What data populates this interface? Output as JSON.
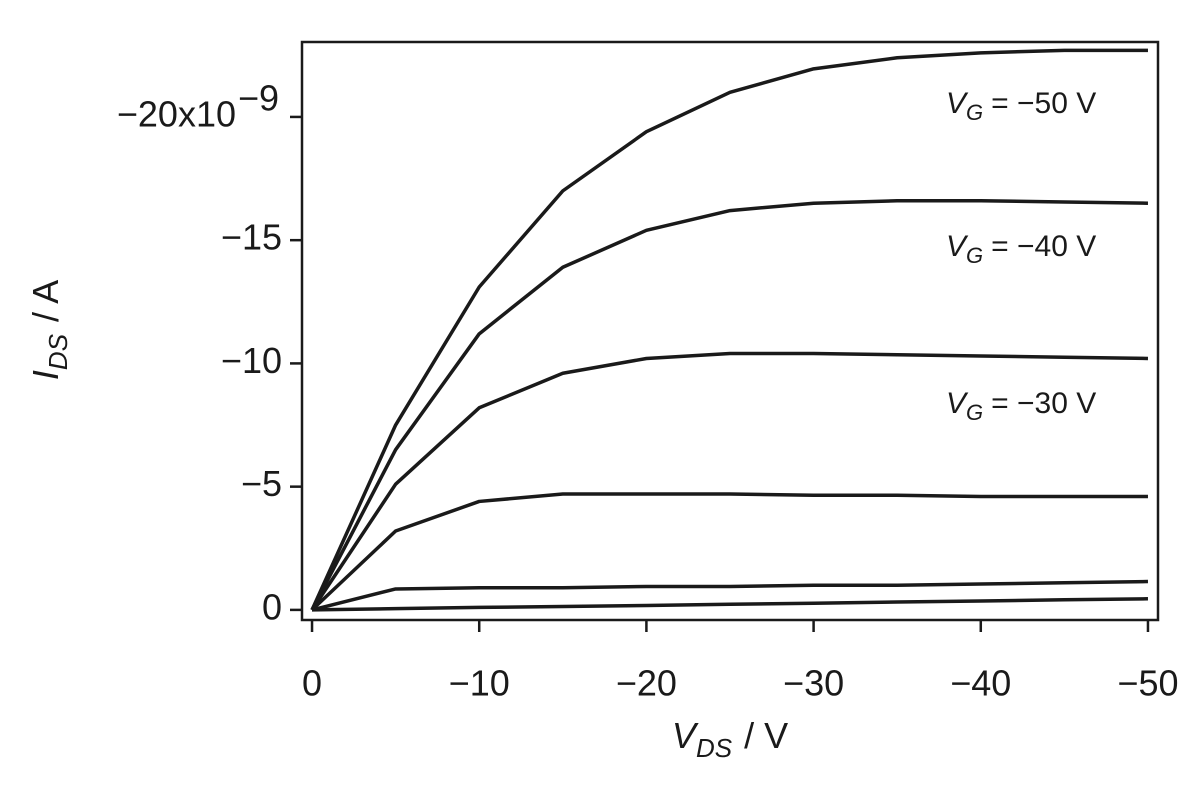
{
  "chart_data": {
    "type": "line",
    "xlabel": {
      "symbol": "V",
      "subscript": "DS",
      "unit": "/ V"
    },
    "ylabel": {
      "symbol": "I",
      "subscript": "DS",
      "unit": "/ A"
    },
    "x": [
      0,
      -5,
      -10,
      -15,
      -20,
      -25,
      -30,
      -35,
      -40,
      -45,
      -50
    ],
    "xlim": [
      0.6,
      -50.6
    ],
    "ylim": [
      0.41,
      -23.04
    ],
    "xticks": [
      0,
      {
        "value": -10,
        "label": "−10"
      },
      {
        "value": -20,
        "label": "−20"
      },
      {
        "value": -30,
        "label": "−30"
      },
      {
        "value": -40,
        "label": "−40"
      },
      {
        "value": -50,
        "label": "−50"
      }
    ],
    "yticks": [
      0,
      {
        "value": -5,
        "label": "−5"
      },
      {
        "value": -10,
        "label": "−10"
      },
      {
        "value": -15,
        "label": "−15"
      },
      {
        "value": -20,
        "label": "−20x10"
      }
    ],
    "ytick_exponent": "−9",
    "series": [
      {
        "label": {
          "symbol": "V",
          "subscript": "G",
          "text": "= −50 V"
        },
        "color": "#1a1a1a",
        "values": [
          0,
          -7.5,
          -13.1,
          -17.0,
          -19.4,
          -21.0,
          -21.95,
          -22.4,
          -22.6,
          -22.7,
          -22.7
        ]
      },
      {
        "label": {
          "symbol": "V",
          "subscript": "G",
          "text": "= −40 V"
        },
        "color": "#1a1a1a",
        "values": [
          0,
          -6.5,
          -11.2,
          -13.9,
          -15.4,
          -16.2,
          -16.5,
          -16.6,
          -16.6,
          -16.55,
          -16.5
        ]
      },
      {
        "label": {
          "symbol": "V",
          "subscript": "G",
          "text": "= −30 V"
        },
        "color": "#1a1a1a",
        "values": [
          0,
          -5.1,
          -8.2,
          -9.6,
          -10.2,
          -10.4,
          -10.4,
          -10.35,
          -10.3,
          -10.25,
          -10.2
        ]
      },
      {
        "color": "#1a1a1a",
        "values": [
          0,
          -3.2,
          -4.4,
          -4.7,
          -4.7,
          -4.7,
          -4.65,
          -4.65,
          -4.6,
          -4.6,
          -4.6
        ]
      },
      {
        "color": "#1a1a1a",
        "values": [
          0,
          -0.85,
          -0.9,
          -0.9,
          -0.95,
          -0.95,
          -1.0,
          -1.0,
          -1.05,
          -1.1,
          -1.15
        ]
      },
      {
        "color": "#1a1a1a",
        "values": [
          0,
          -0.05,
          -0.1,
          -0.14,
          -0.18,
          -0.23,
          -0.27,
          -0.32,
          -0.36,
          -0.41,
          -0.45
        ]
      }
    ]
  }
}
